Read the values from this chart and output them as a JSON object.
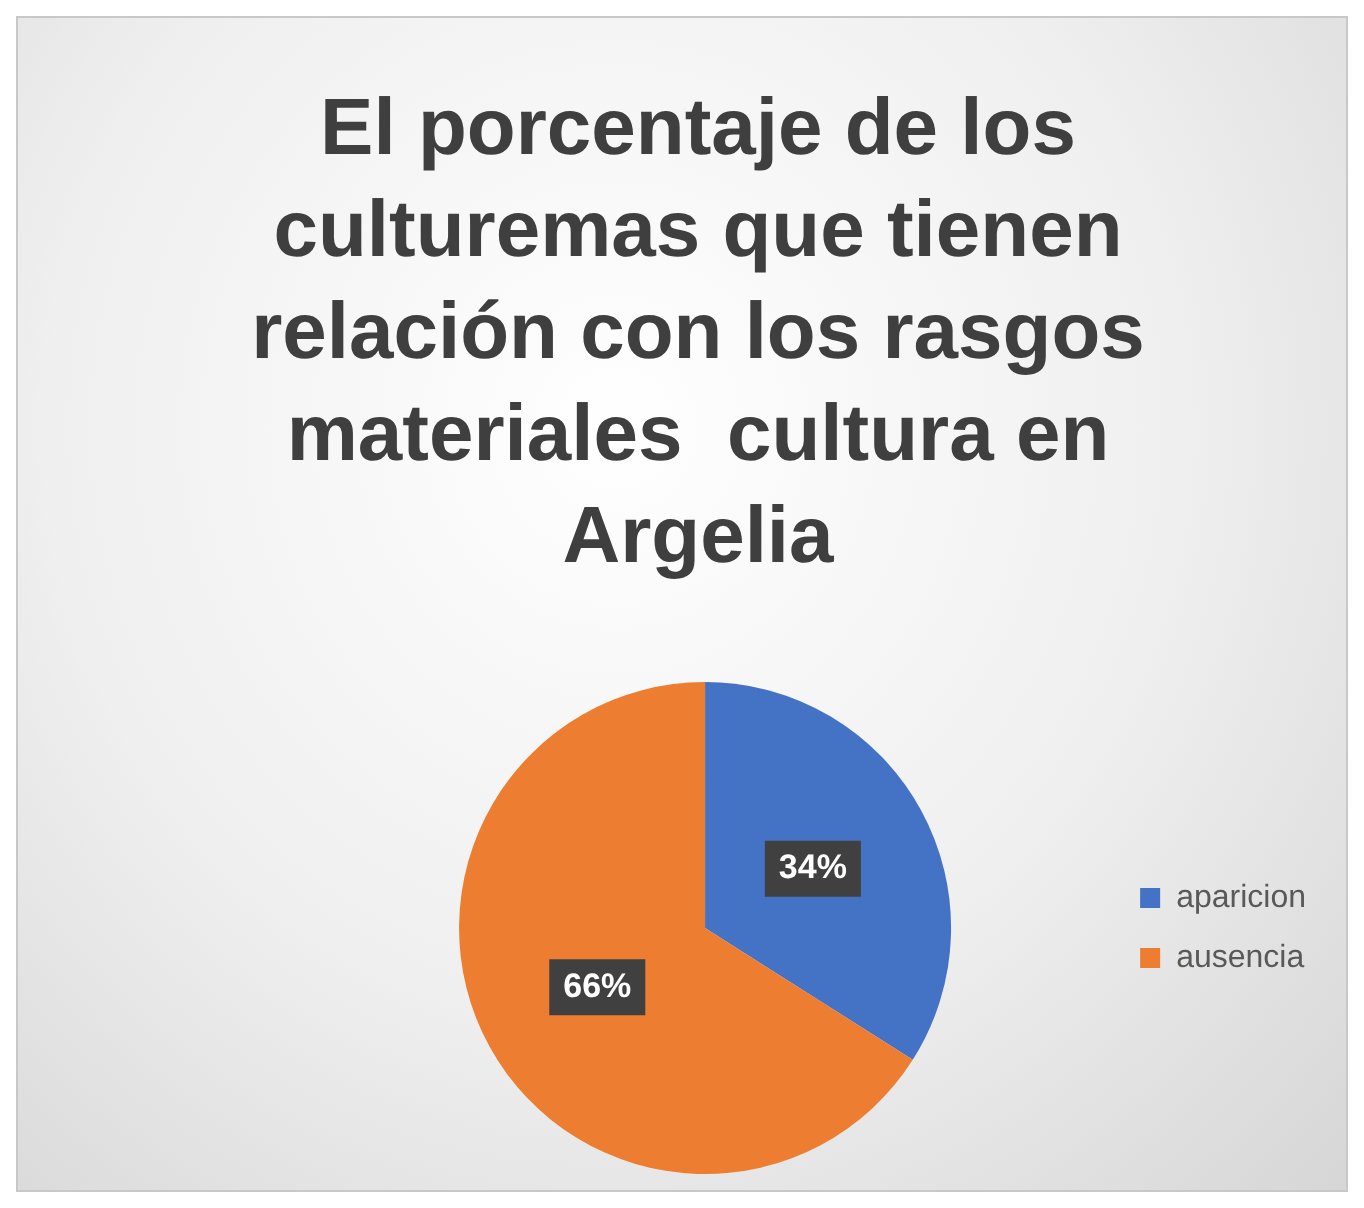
{
  "chart_data": {
    "type": "pie",
    "title": "El porcentaje de los culturemas que tienen relación con los rasgos materiales  cultura en Argelia",
    "categories": [
      "aparicion",
      "ausencia"
    ],
    "values": [
      34,
      66
    ],
    "value_labels": [
      "34%",
      "66%"
    ],
    "colors": [
      "#4472c4",
      "#ed7d31"
    ],
    "legend": "right"
  }
}
